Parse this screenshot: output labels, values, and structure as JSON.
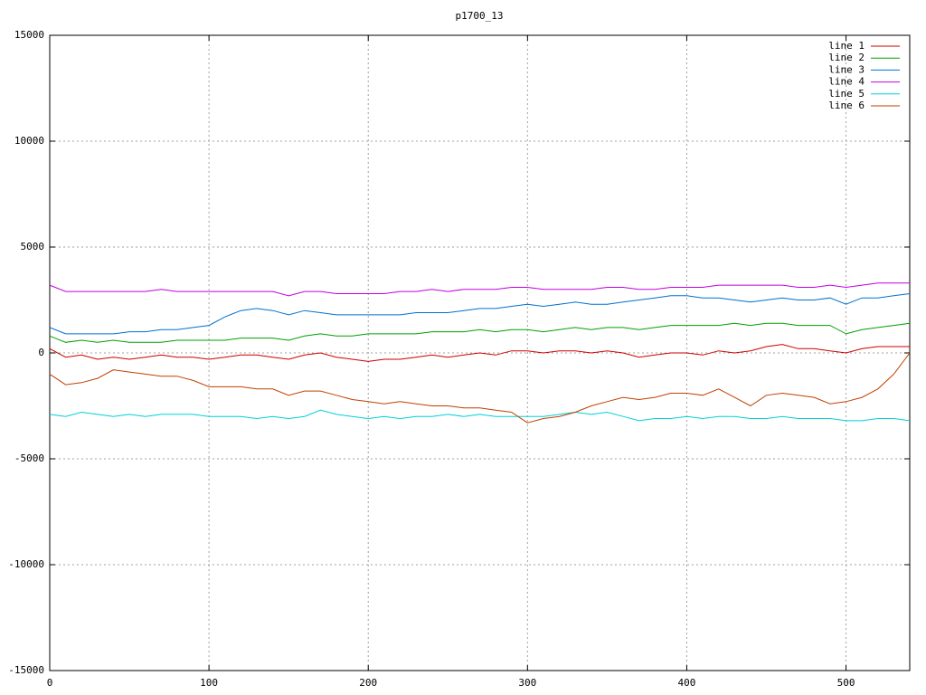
{
  "chart_data": {
    "type": "line",
    "title": "p1700_13",
    "x": [
      0,
      10,
      20,
      30,
      40,
      50,
      60,
      70,
      80,
      90,
      100,
      110,
      120,
      130,
      140,
      150,
      160,
      170,
      180,
      190,
      200,
      210,
      220,
      230,
      240,
      250,
      260,
      270,
      280,
      290,
      300,
      310,
      320,
      330,
      340,
      350,
      360,
      370,
      380,
      390,
      400,
      410,
      420,
      430,
      440,
      450,
      460,
      470,
      480,
      490,
      500,
      510,
      520,
      530,
      540
    ],
    "xlim": [
      0,
      540
    ],
    "xticks": [
      0,
      100,
      200,
      300,
      400,
      500
    ],
    "ylim": [
      -15000,
      15000
    ],
    "yticks": [
      -15000,
      -10000,
      -5000,
      0,
      5000,
      10000,
      15000
    ],
    "grid": true,
    "legend": "top-right",
    "series": [
      {
        "name": "line 1",
        "color": "#cc0000",
        "values": [
          200,
          -200,
          -100,
          -300,
          -200,
          -300,
          -200,
          -100,
          -200,
          -200,
          -300,
          -200,
          -100,
          -100,
          -200,
          -300,
          -100,
          0,
          -200,
          -300,
          -400,
          -300,
          -300,
          -200,
          -100,
          -200,
          -100,
          0,
          -100,
          100,
          100,
          0,
          100,
          100,
          0,
          100,
          0,
          -200,
          -100,
          0,
          0,
          -100,
          100,
          0,
          100,
          300,
          400,
          200,
          200,
          100,
          0,
          200,
          300,
          300,
          300
        ]
      },
      {
        "name": "line 2",
        "color": "#00a000",
        "values": [
          800,
          500,
          600,
          500,
          600,
          500,
          500,
          500,
          600,
          600,
          600,
          600,
          700,
          700,
          700,
          600,
          800,
          900,
          800,
          800,
          900,
          900,
          900,
          900,
          1000,
          1000,
          1000,
          1100,
          1000,
          1100,
          1100,
          1000,
          1100,
          1200,
          1100,
          1200,
          1200,
          1100,
          1200,
          1300,
          1300,
          1300,
          1300,
          1400,
          1300,
          1400,
          1400,
          1300,
          1300,
          1300,
          900,
          1100,
          1200,
          1300,
          1400
        ]
      },
      {
        "name": "line 3",
        "color": "#0070d0",
        "values": [
          1200,
          900,
          900,
          900,
          900,
          1000,
          1000,
          1100,
          1100,
          1200,
          1300,
          1700,
          2000,
          2100,
          2000,
          1800,
          2000,
          1900,
          1800,
          1800,
          1800,
          1800,
          1800,
          1900,
          1900,
          1900,
          2000,
          2100,
          2100,
          2200,
          2300,
          2200,
          2300,
          2400,
          2300,
          2300,
          2400,
          2500,
          2600,
          2700,
          2700,
          2600,
          2600,
          2500,
          2400,
          2500,
          2600,
          2500,
          2500,
          2600,
          2300,
          2600,
          2600,
          2700,
          2800
        ]
      },
      {
        "name": "line 4",
        "color": "#c000e0",
        "values": [
          3200,
          2900,
          2900,
          2900,
          2900,
          2900,
          2900,
          3000,
          2900,
          2900,
          2900,
          2900,
          2900,
          2900,
          2900,
          2700,
          2900,
          2900,
          2800,
          2800,
          2800,
          2800,
          2900,
          2900,
          3000,
          2900,
          3000,
          3000,
          3000,
          3100,
          3100,
          3000,
          3000,
          3000,
          3000,
          3100,
          3100,
          3000,
          3000,
          3100,
          3100,
          3100,
          3200,
          3200,
          3200,
          3200,
          3200,
          3100,
          3100,
          3200,
          3100,
          3200,
          3300,
          3300,
          3300
        ]
      },
      {
        "name": "line 5",
        "color": "#00d0d8",
        "values": [
          -2900,
          -3000,
          -2800,
          -2900,
          -3000,
          -2900,
          -3000,
          -2900,
          -2900,
          -2900,
          -3000,
          -3000,
          -3000,
          -3100,
          -3000,
          -3100,
          -3000,
          -2700,
          -2900,
          -3000,
          -3100,
          -3000,
          -3100,
          -3000,
          -3000,
          -2900,
          -3000,
          -2900,
          -3000,
          -3000,
          -3000,
          -3000,
          -2900,
          -2800,
          -2900,
          -2800,
          -3000,
          -3200,
          -3100,
          -3100,
          -3000,
          -3100,
          -3000,
          -3000,
          -3100,
          -3100,
          -3000,
          -3100,
          -3100,
          -3100,
          -3200,
          -3200,
          -3100,
          -3100,
          -3200
        ]
      },
      {
        "name": "line 6",
        "color": "#c04000",
        "values": [
          -1000,
          -1500,
          -1400,
          -1200,
          -800,
          -900,
          -1000,
          -1100,
          -1100,
          -1300,
          -1600,
          -1600,
          -1600,
          -1700,
          -1700,
          -2000,
          -1800,
          -1800,
          -2000,
          -2200,
          -2300,
          -2400,
          -2300,
          -2400,
          -2500,
          -2500,
          -2600,
          -2600,
          -2700,
          -2800,
          -3300,
          -3100,
          -3000,
          -2800,
          -2500,
          -2300,
          -2100,
          -2200,
          -2100,
          -1900,
          -1900,
          -2000,
          -1700,
          -2100,
          -2500,
          -2000,
          -1900,
          -2000,
          -2100,
          -2400,
          -2300,
          -2100,
          -1700,
          -1000,
          0
        ]
      }
    ]
  }
}
